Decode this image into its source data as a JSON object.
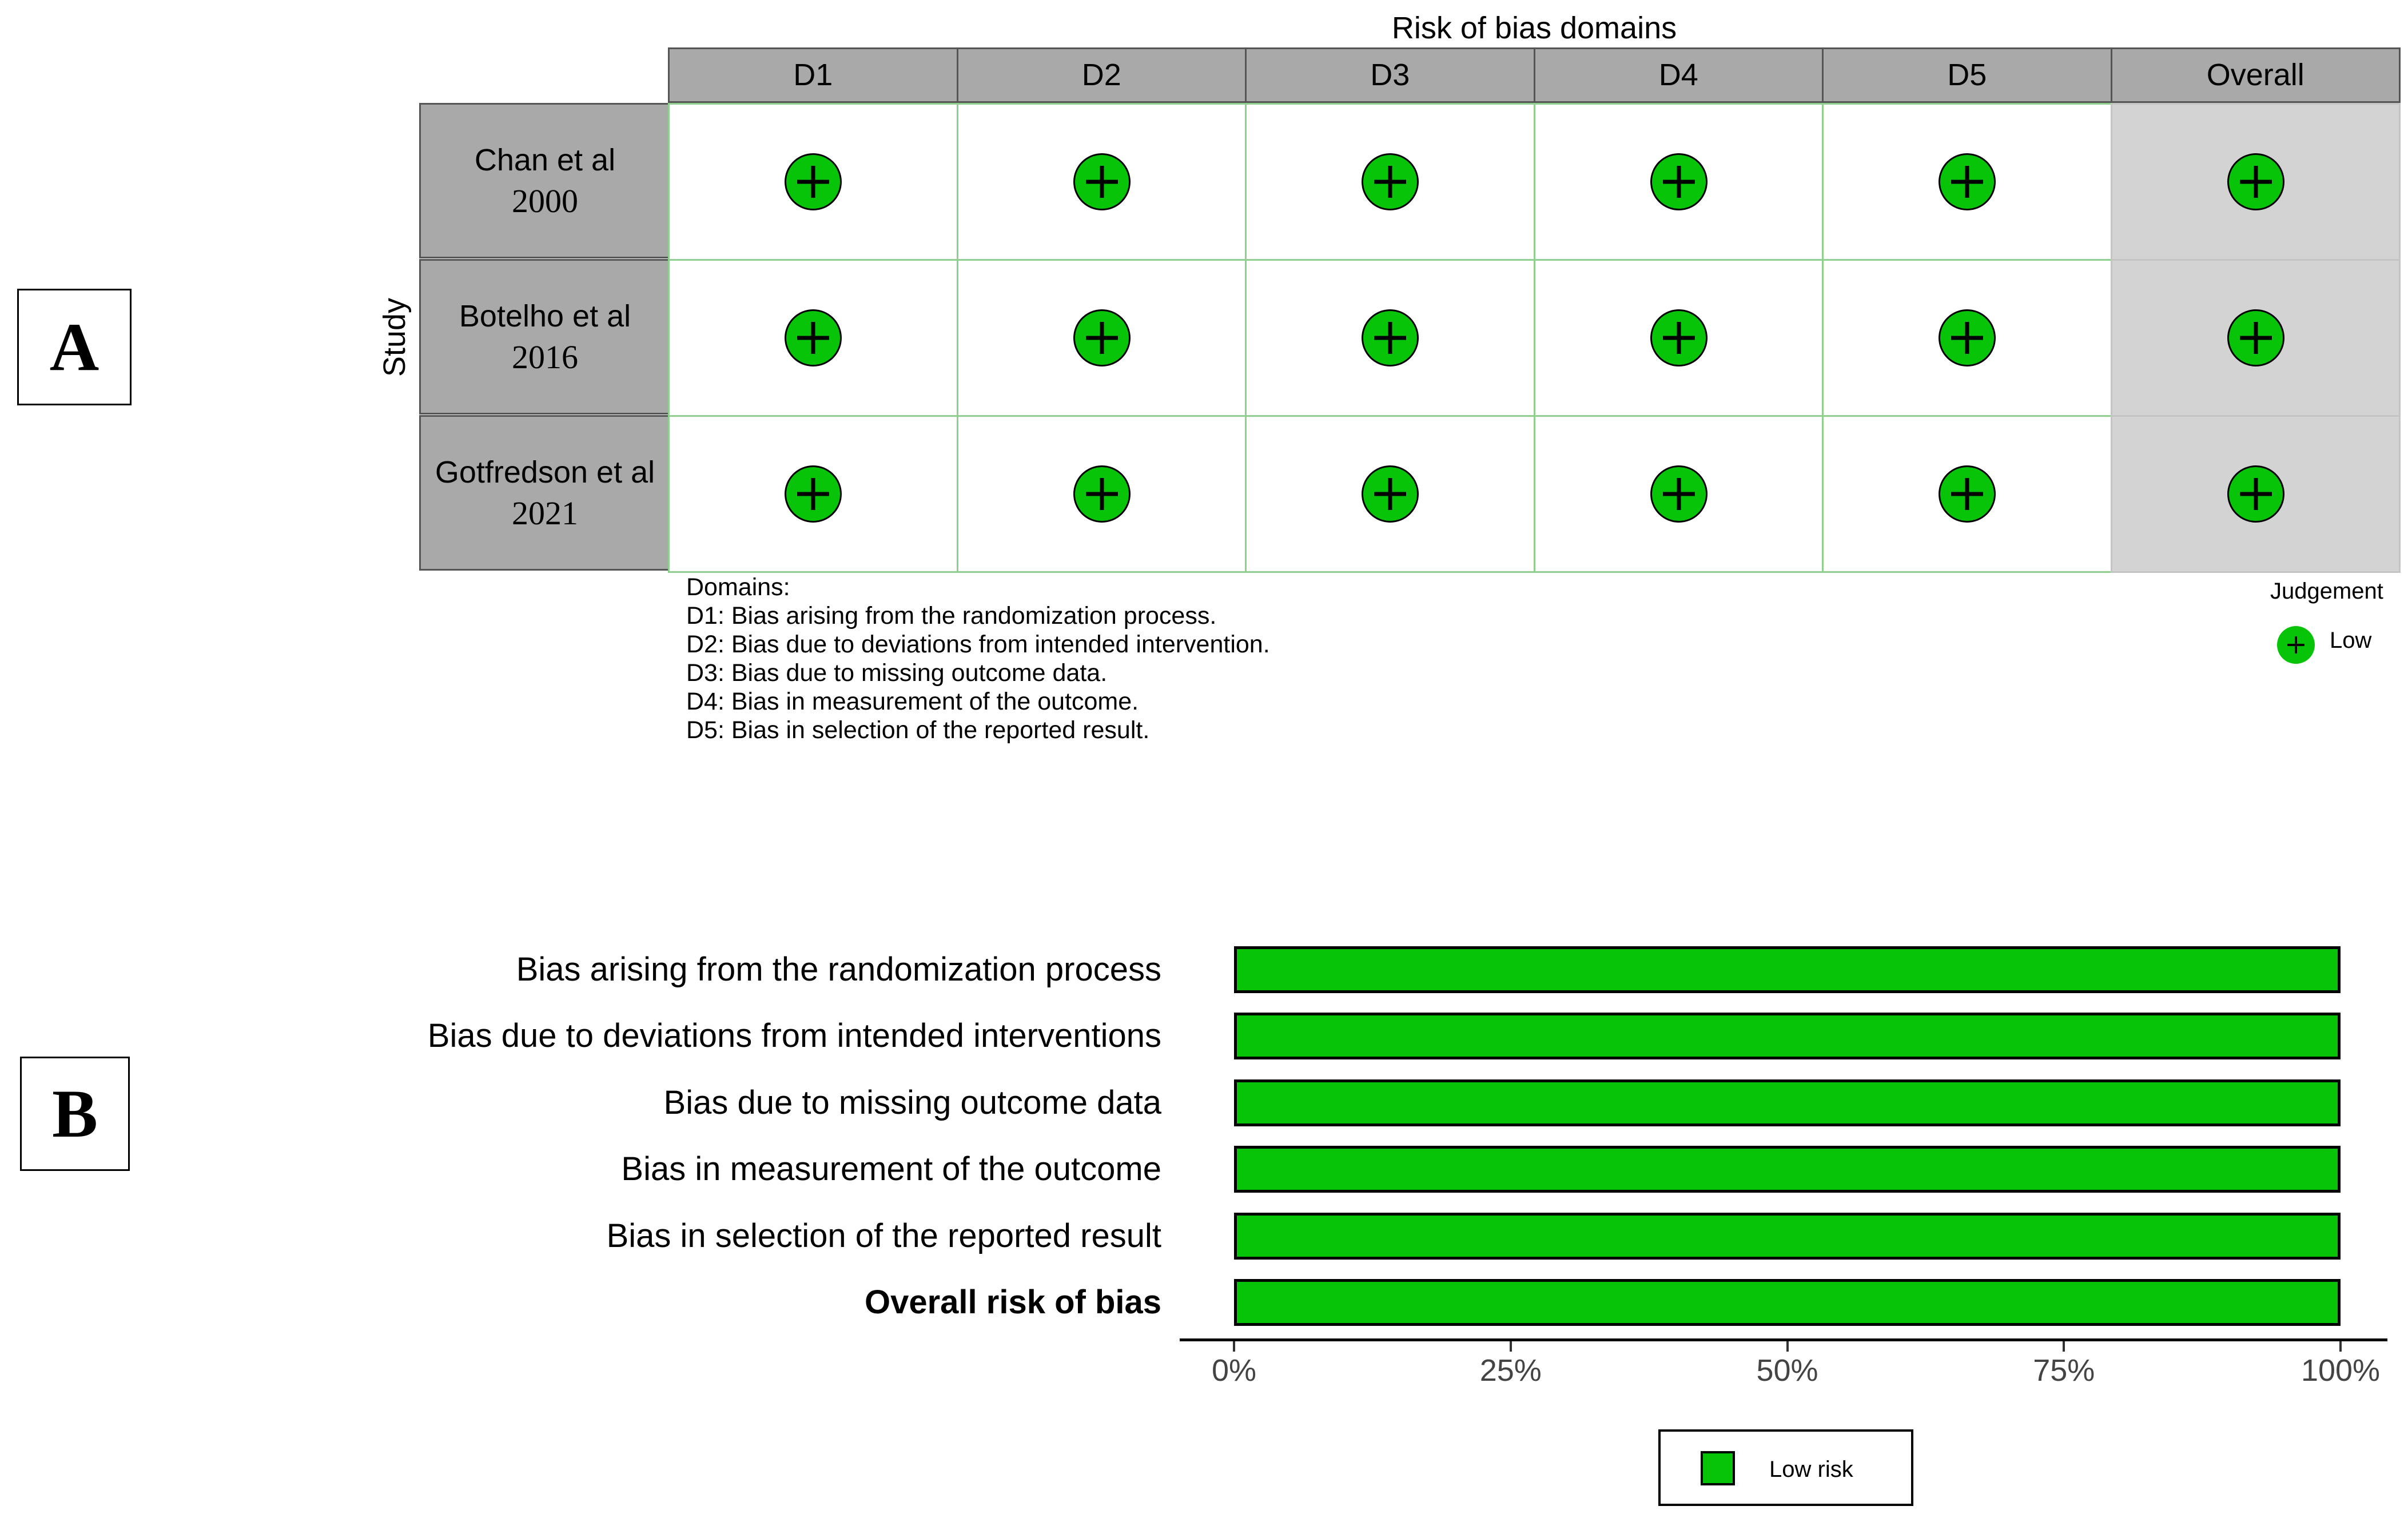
{
  "panels": {
    "a": "A",
    "b": "B"
  },
  "chart_data": [
    {
      "type": "table",
      "title": "Risk of bias domains",
      "ylabel": "Study",
      "columns": [
        "D1",
        "D2",
        "D3",
        "D4",
        "D5",
        "Overall"
      ],
      "rows": [
        {
          "name": "Chan et al",
          "year": "2000",
          "judgements": [
            "Low",
            "Low",
            "Low",
            "Low",
            "Low",
            "Low"
          ]
        },
        {
          "name": "Botelho et al",
          "year": "2016",
          "judgements": [
            "Low",
            "Low",
            "Low",
            "Low",
            "Low",
            "Low"
          ]
        },
        {
          "name": "Gotfredson et al",
          "year": "2021",
          "judgements": [
            "Low",
            "Low",
            "Low",
            "Low",
            "Low",
            "Low"
          ]
        }
      ],
      "domains_text": [
        "Domains:",
        "D1: Bias arising from the randomization process.",
        "D2: Bias due to deviations from intended intervention.",
        "D3: Bias due to missing outcome data.",
        "D4: Bias in measurement of the outcome.",
        "D5: Bias in selection of the reported result."
      ],
      "legend": {
        "title": "Judgement",
        "entries": [
          {
            "label": "Low",
            "symbol": "+",
            "color": "#08c408"
          }
        ]
      }
    },
    {
      "type": "bar",
      "orientation": "horizontal",
      "categories": [
        "Bias arising from the randomization process",
        "Bias due to deviations from intended interventions",
        "Bias due to missing outcome data",
        "Bias in measurement of the outcome",
        "Bias in selection of the reported result",
        "Overall risk of bias"
      ],
      "bold_category": "Overall risk of bias",
      "series": [
        {
          "name": "Low risk",
          "color": "#08c408",
          "values": [
            100,
            100,
            100,
            100,
            100,
            100
          ]
        }
      ],
      "xlim": [
        0,
        100
      ],
      "xticks": [
        "0%",
        "25%",
        "50%",
        "75%",
        "100%"
      ],
      "legend": {
        "entries": [
          "Low risk"
        ],
        "placement": "bottom"
      }
    }
  ]
}
